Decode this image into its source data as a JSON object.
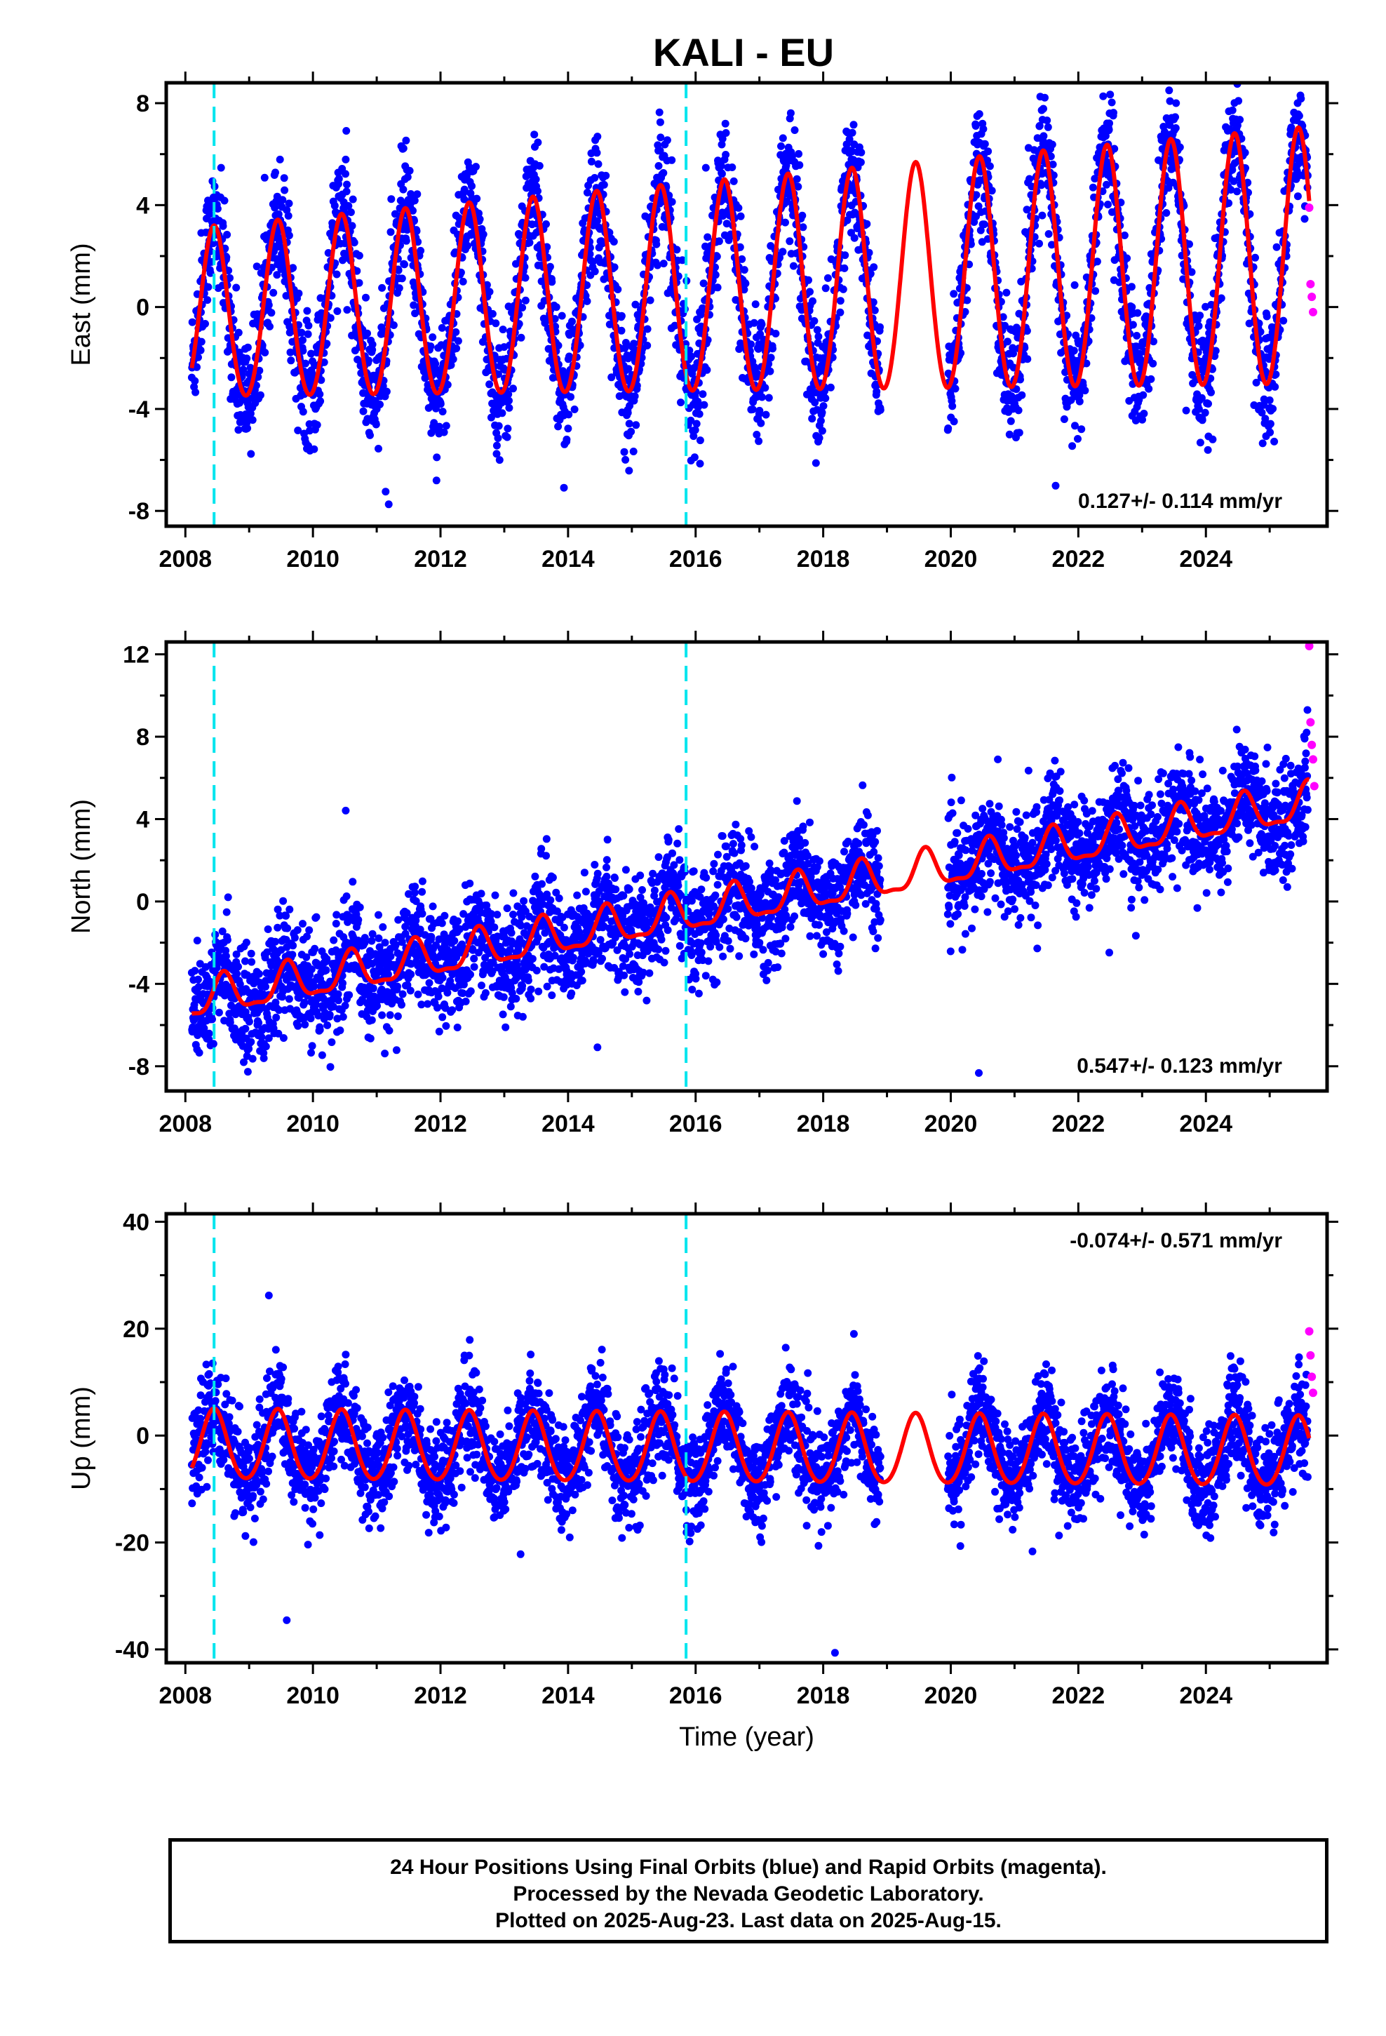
{
  "title": "KALI - EU",
  "xlabel": "Time (year)",
  "caption": {
    "line1": "24 Hour Positions Using Final Orbits (blue) and Rapid Orbits (magenta).",
    "line2": "Processed by the Nevada Geodetic Laboratory.",
    "line3": "Plotted on 2025-Aug-23. Last data on 2025-Aug-15."
  },
  "colors": {
    "final_orbits": "#0000ff",
    "rapid_orbits": "#ff00ff",
    "model_fit": "#ff0000",
    "equipment_change": "#00e5ee"
  },
  "chart_data": [
    {
      "type": "scatter",
      "ylabel": "East (mm)",
      "rate_label": "0.127+/- 0.114 mm/yr",
      "xlim": [
        2007.7,
        2025.9
      ],
      "ylim": [
        -8.6,
        8.8
      ],
      "xticks": [
        "2008",
        "2010",
        "2012",
        "2014",
        "2016",
        "2018",
        "2020",
        "2022",
        "2024"
      ],
      "yticks": [
        "-8",
        "-4",
        "0",
        "4",
        "8"
      ],
      "equipment_changes": [
        2008.45,
        2015.85
      ],
      "model": {
        "offset": -0.4,
        "rate": 0.127,
        "annual_amp": 3.3,
        "annual_phase": 2008.45,
        "semiannual_amp": 0.2,
        "seasonal_ramp": 0.03
      },
      "final_orbits": {
        "start": 2008.1,
        "end": 2025.6,
        "gap": [
          2018.9,
          2019.95
        ],
        "noise": 1.2
      },
      "rapid_orbits": {
        "x": [
          2025.62,
          2025.64,
          2025.66,
          2025.68
        ],
        "y": [
          3.9,
          0.9,
          0.4,
          -0.2
        ]
      }
    },
    {
      "type": "scatter",
      "ylabel": "North (mm)",
      "rate_label": "0.547+/- 0.123 mm/yr",
      "xlim": [
        2007.7,
        2025.9
      ],
      "ylim": [
        -9.2,
        12.6
      ],
      "xticks": [
        "2008",
        "2010",
        "2012",
        "2014",
        "2016",
        "2018",
        "2020",
        "2022",
        "2024"
      ],
      "yticks": [
        "-8",
        "-4",
        "0",
        "4",
        "8",
        "12"
      ],
      "equipment_changes": [
        2008.45,
        2015.85
      ],
      "model": {
        "offset": -4.9,
        "rate": 0.547,
        "annual_amp": 0.9,
        "annual_phase": 2008.6,
        "semiannual_amp": 0.3,
        "seasonal_ramp": 0.0
      },
      "final_orbits": {
        "start": 2008.1,
        "end": 2025.6,
        "gap": [
          2018.9,
          2019.95
        ],
        "noise": 1.3
      },
      "rapid_orbits": {
        "x": [
          2025.62,
          2025.64,
          2025.66,
          2025.68,
          2025.7
        ],
        "y": [
          12.4,
          8.7,
          7.6,
          6.9,
          5.6
        ]
      }
    },
    {
      "type": "scatter",
      "ylabel": "Up (mm)",
      "rate_label": "-0.074+/- 0.571 mm/yr",
      "xlim": [
        2007.7,
        2025.9
      ],
      "ylim": [
        -42.5,
        41.5
      ],
      "xticks": [
        "2008",
        "2010",
        "2012",
        "2014",
        "2016",
        "2018",
        "2020",
        "2022",
        "2024"
      ],
      "yticks": [
        "-40",
        "-20",
        "0",
        "20",
        "40"
      ],
      "equipment_changes": [
        2008.45,
        2015.85
      ],
      "model": {
        "offset": -2.0,
        "rate": -0.074,
        "annual_amp": 6.5,
        "annual_phase": 2008.45,
        "semiannual_amp": 0.6,
        "seasonal_ramp": 0.0
      },
      "final_orbits": {
        "start": 2008.1,
        "end": 2025.6,
        "gap": [
          2018.9,
          2019.95
        ],
        "noise": 4.5
      },
      "rapid_orbits": {
        "x": [
          2025.62,
          2025.64,
          2025.66,
          2025.68
        ],
        "y": [
          19.5,
          15.0,
          11.0,
          8.0
        ]
      }
    }
  ]
}
